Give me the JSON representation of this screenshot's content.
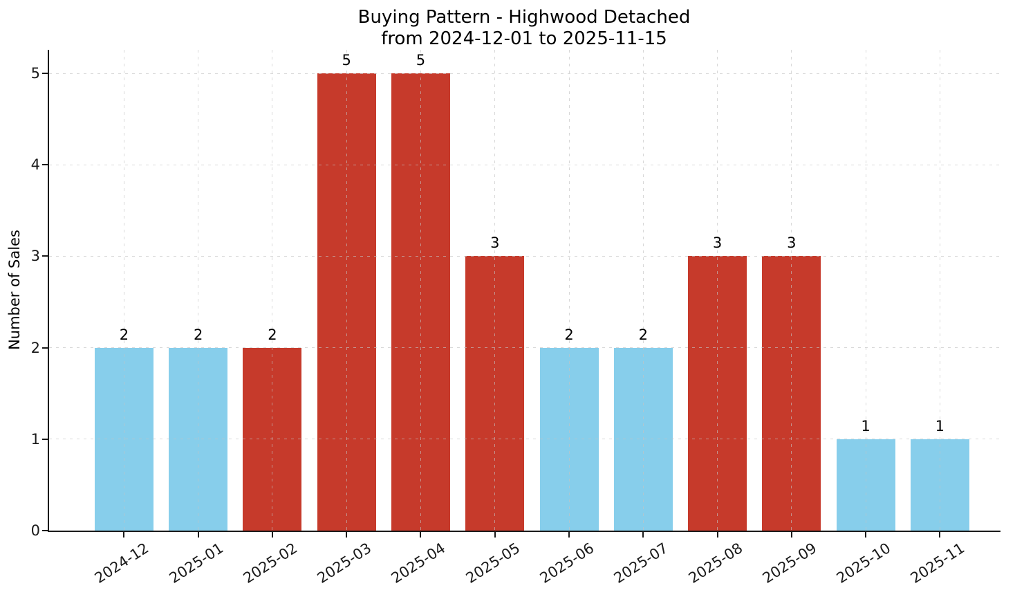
{
  "chart_data": {
    "type": "bar",
    "title": "Buying Pattern - Highwood Detached",
    "subtitle": "from 2024-12-01 to 2025-11-15",
    "ylabel": "Number of Sales",
    "xlabel": "",
    "categories": [
      "2024-12",
      "2025-01",
      "2025-02",
      "2025-03",
      "2025-04",
      "2025-05",
      "2025-06",
      "2025-07",
      "2025-08",
      "2025-09",
      "2025-10",
      "2025-11"
    ],
    "values": [
      2,
      2,
      2,
      5,
      5,
      3,
      2,
      2,
      3,
      3,
      1,
      1
    ],
    "bar_value_labels": [
      "2",
      "2",
      "2",
      "5",
      "5",
      "3",
      "2",
      "2",
      "3",
      "3",
      "1",
      "1"
    ],
    "bar_colors": [
      "#87CEEB",
      "#87CEEB",
      "#C63A2B",
      "#C63A2B",
      "#C63A2B",
      "#C63A2B",
      "#87CEEB",
      "#87CEEB",
      "#C63A2B",
      "#C63A2B",
      "#87CEEB",
      "#87CEEB"
    ],
    "yticks": [
      0,
      1,
      2,
      3,
      4,
      5
    ],
    "ylim": [
      0,
      5.26
    ],
    "grid": true,
    "legend_position": "none",
    "colors": {
      "bar_blue": "#87CEEB",
      "bar_red": "#C63A2B",
      "grid": "#C3C3C3",
      "axis": "#1A1A1A",
      "background": "#FFFFFF"
    }
  }
}
